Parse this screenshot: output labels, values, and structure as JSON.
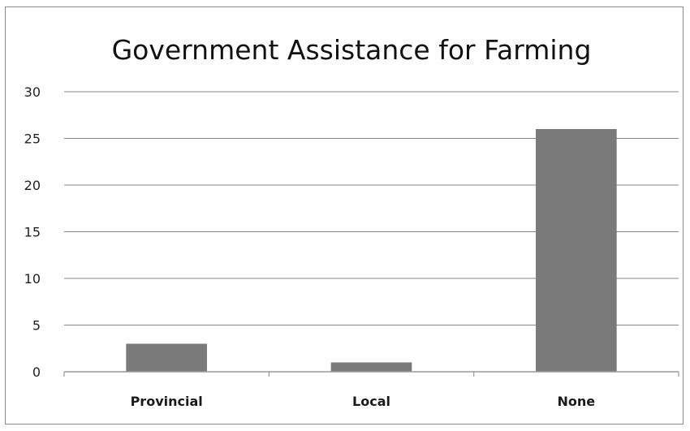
{
  "chart_data": {
    "type": "bar",
    "title": "Government Assistance for Farming",
    "categories": [
      "Provincial",
      "Local",
      "None"
    ],
    "values": [
      3,
      1,
      26
    ],
    "xlabel": "",
    "ylabel": "",
    "ylim": [
      0,
      30
    ],
    "yticks": [
      0,
      5,
      10,
      15,
      20,
      25,
      30
    ],
    "grid": true,
    "legend": "none",
    "bar_color": "#7a7a7a",
    "gridline_color": "#8a8a8a",
    "axis_color": "#9a9a9a"
  }
}
